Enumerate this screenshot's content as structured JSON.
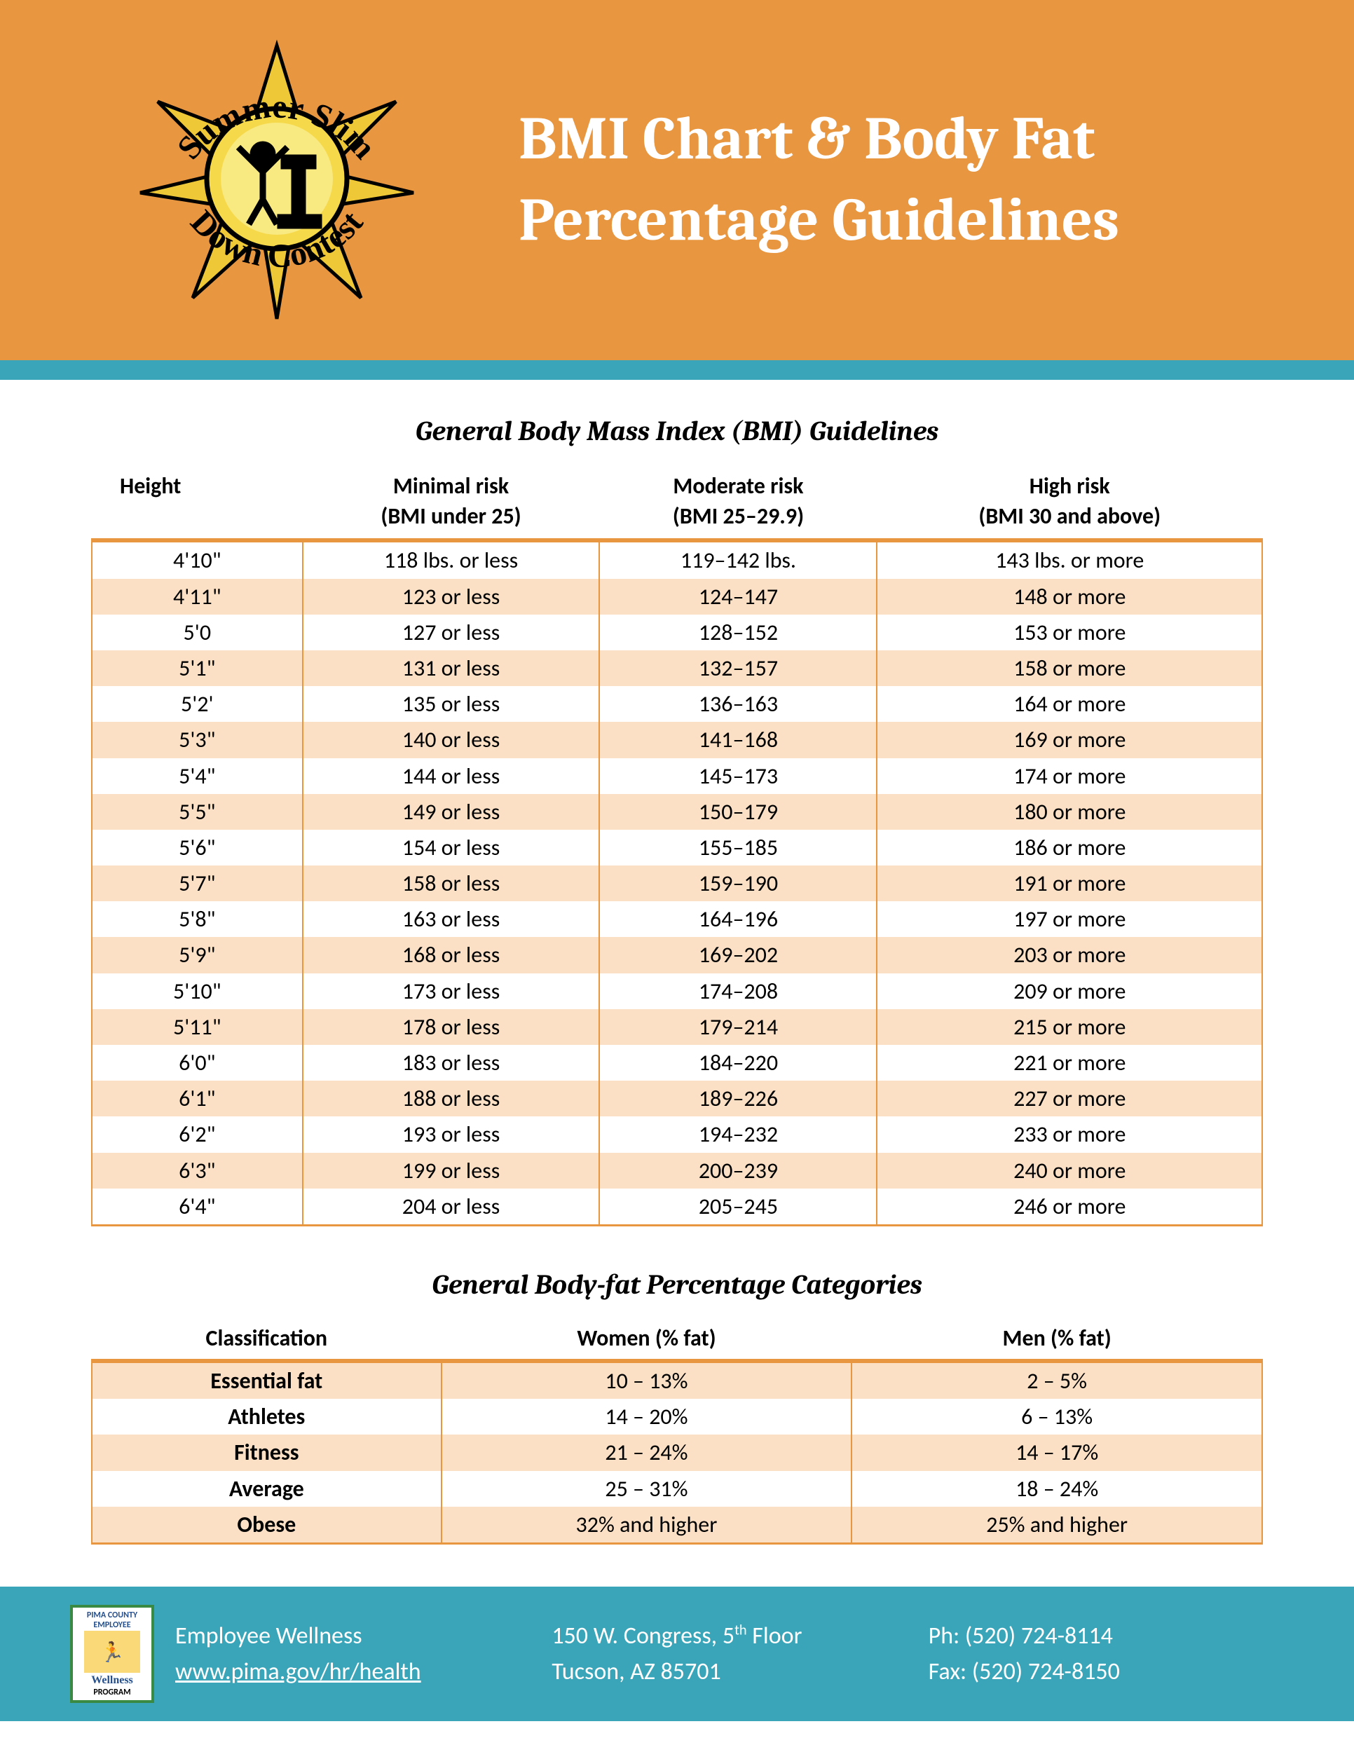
{
  "colors": {
    "header_bg": "#e8963f",
    "accent_bar": "#3aa5b8",
    "row_alt_bg": "#fbe0c6",
    "table_border": "#e8963f",
    "title_text": "#ffffff",
    "footer_bg": "#3aa5b8"
  },
  "header": {
    "logo_text_top": "Summer Slim",
    "logo_text_bottom": "Down Contest",
    "title": "BMI Chart & Body Fat Percentage Guidelines"
  },
  "bmi_table": {
    "title": "General Body Mass Index (BMI) Guidelines",
    "columns": [
      {
        "line1": "Height",
        "line2": ""
      },
      {
        "line1": "Minimal risk",
        "line2": "(BMI under 25)"
      },
      {
        "line1": "Moderate risk",
        "line2": "(BMI 25–29.9)"
      },
      {
        "line1": "High risk",
        "line2": "(BMI 30 and above)"
      }
    ],
    "rows": [
      [
        "4'10\"",
        "118 lbs. or less",
        "119–142 lbs.",
        "143 lbs. or more"
      ],
      [
        "4'11\"",
        "123 or less",
        "124–147",
        "148 or more"
      ],
      [
        "5'0",
        "127 or less",
        "128–152",
        "153 or more"
      ],
      [
        "5'1\"",
        "131 or less",
        "132–157",
        "158 or more"
      ],
      [
        "5'2'",
        "135 or less",
        "136–163",
        "164 or more"
      ],
      [
        "5'3\"",
        "140 or less",
        "141–168",
        "169 or more"
      ],
      [
        "5'4\"",
        "144 or less",
        "145–173",
        "174 or more"
      ],
      [
        "5'5\"",
        "149 or less",
        "150–179",
        "180 or more"
      ],
      [
        "5'6\"",
        "154 or less",
        "155–185",
        "186 or more"
      ],
      [
        "5'7\"",
        "158 or less",
        "159–190",
        "191 or more"
      ],
      [
        "5'8\"",
        "163 or less",
        "164–196",
        "197 or more"
      ],
      [
        "5'9\"",
        "168 or less",
        "169–202",
        "203 or more"
      ],
      [
        "5'10\"",
        "173 or less",
        "174–208",
        "209 or more"
      ],
      [
        "5'11\"",
        "178 or less",
        "179–214",
        "215 or more"
      ],
      [
        "6'0\"",
        "183 or less",
        "184–220",
        "221 or more"
      ],
      [
        "6'1\"",
        "188 or less",
        "189–226",
        "227 or more"
      ],
      [
        "6'2\"",
        "193 or less",
        "194–232",
        "233 or more"
      ],
      [
        "6'3\"",
        "199 or less",
        "200–239",
        "240 or more"
      ],
      [
        "6'4\"",
        "204 or less",
        "205–245",
        "246 or more"
      ]
    ]
  },
  "fat_table": {
    "title": "General Body-fat Percentage Categories",
    "columns": [
      "Classification",
      "Women (% fat)",
      "Men (% fat)"
    ],
    "rows": [
      [
        "Essential fat",
        "10 – 13%",
        "2 – 5%"
      ],
      [
        "Athletes",
        "14 – 20%",
        "6 – 13%"
      ],
      [
        "Fitness",
        "21 – 24%",
        "14 – 17%"
      ],
      [
        "Average",
        "25 – 31%",
        "18 – 24%"
      ],
      [
        "Obese",
        "32% and higher",
        "25% and higher"
      ]
    ]
  },
  "footer": {
    "badge_top": "PIMA COUNTY EMPLOYEE",
    "badge_mid": "Wellness",
    "badge_bot": "PROGRAM",
    "col1_line1": "Employee Wellness",
    "col1_line2": "www.pima.gov/hr/health",
    "col2_line1_pre": "150 W. Congress, 5",
    "col2_line1_sup": "th",
    "col2_line1_post": " Floor",
    "col2_line2": "Tucson, AZ 85701",
    "col3_line1": "Ph: (520) 724-8114",
    "col3_line2": "Fax: (520) 724-8150"
  }
}
